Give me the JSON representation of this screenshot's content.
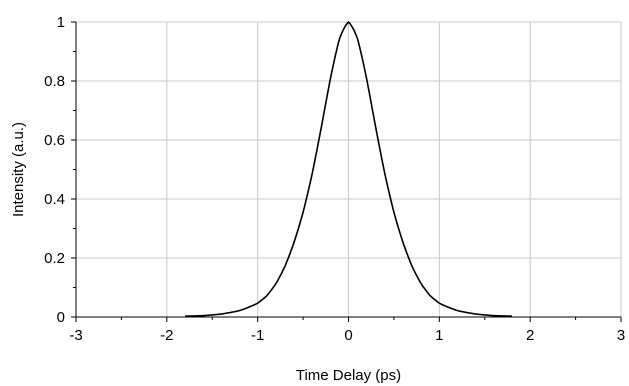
{
  "chart_data": {
    "type": "line",
    "title": "",
    "xlabel": "Time Delay (ps)",
    "ylabel": "Intensity (a.u.)",
    "xlim": [
      -3,
      3
    ],
    "ylim": [
      0,
      1
    ],
    "xticks": [
      -3,
      -2,
      -1,
      0,
      1,
      2,
      3
    ],
    "yticks": [
      0,
      0.2,
      0.4,
      0.6,
      0.8,
      1
    ],
    "xtick_labels": [
      "-3",
      "-2",
      "-1",
      "0",
      "1",
      "2",
      "3"
    ],
    "ytick_labels": [
      "0",
      "0.2",
      "0.4",
      "0.6",
      "0.8",
      "1"
    ],
    "grid": true,
    "legend": "none",
    "line_color": "#000000",
    "series": [
      {
        "x": [
          -1.8,
          -1.6,
          -1.4,
          -1.2,
          -1.0,
          -0.9,
          -0.8,
          -0.7,
          -0.6,
          -0.5,
          -0.4,
          -0.3,
          -0.2,
          -0.1,
          0.0,
          0.1,
          0.2,
          0.3,
          0.4,
          0.5,
          0.6,
          0.7,
          0.8,
          0.9,
          1.0,
          1.2,
          1.4,
          1.6,
          1.8
        ],
        "values": [
          0.005,
          0.007,
          0.015,
          0.03,
          0.06,
          0.09,
          0.14,
          0.21,
          0.3,
          0.4,
          0.52,
          0.66,
          0.81,
          0.94,
          1.0,
          0.94,
          0.81,
          0.66,
          0.52,
          0.4,
          0.3,
          0.21,
          0.14,
          0.09,
          0.06,
          0.03,
          0.015,
          0.007,
          0.005
        ]
      }
    ]
  }
}
